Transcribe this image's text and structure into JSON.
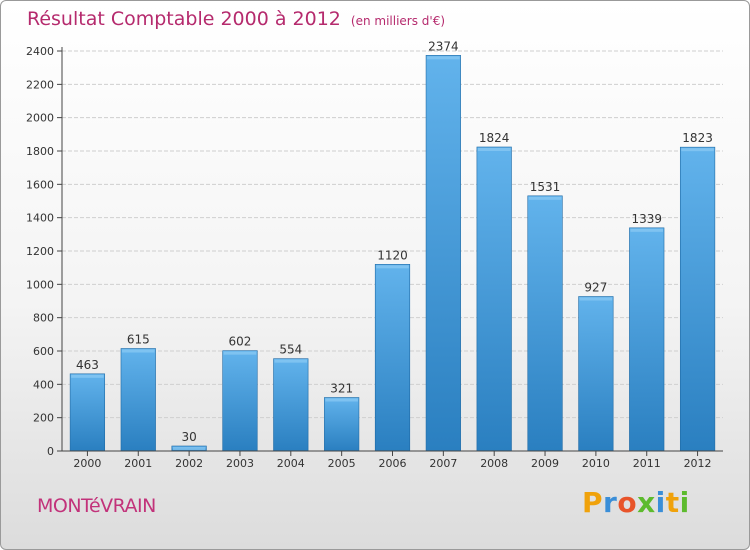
{
  "header": {
    "title": "Résultat Comptable 2000 à 2012",
    "subtitle": "(en milliers d'€)"
  },
  "footer": {
    "place": "MONTéVRAIN",
    "logo": {
      "letters": [
        "P",
        "r",
        "o",
        "x",
        "i",
        "t",
        "i"
      ],
      "colors": [
        "#f0a20b",
        "#3a8ed8",
        "#e8542a",
        "#5dbb2e",
        "#3a8ed8",
        "#f0a20b",
        "#5dbb2e"
      ]
    }
  },
  "colors": {
    "bar_top": "#62b3ec",
    "bar_bottom": "#2a7fc0",
    "axis": "#444444",
    "grid": "#cfcfcf",
    "title": "#b52a6d"
  },
  "chart_data": {
    "type": "bar",
    "title": "Résultat Comptable 2000 à 2012",
    "ylabel": "",
    "xlabel": "",
    "categories": [
      "2000",
      "2001",
      "2002",
      "2003",
      "2004",
      "2005",
      "2006",
      "2007",
      "2008",
      "2009",
      "2010",
      "2011",
      "2012"
    ],
    "values": [
      463,
      615,
      30,
      602,
      554,
      321,
      1120,
      2374,
      1824,
      1531,
      927,
      1339,
      1823
    ],
    "ylim": [
      0,
      2400
    ],
    "yticks": [
      0,
      200,
      400,
      600,
      800,
      1000,
      1200,
      1400,
      1600,
      1800,
      2000,
      2200,
      2400
    ],
    "grid": true,
    "data_labels": true
  }
}
